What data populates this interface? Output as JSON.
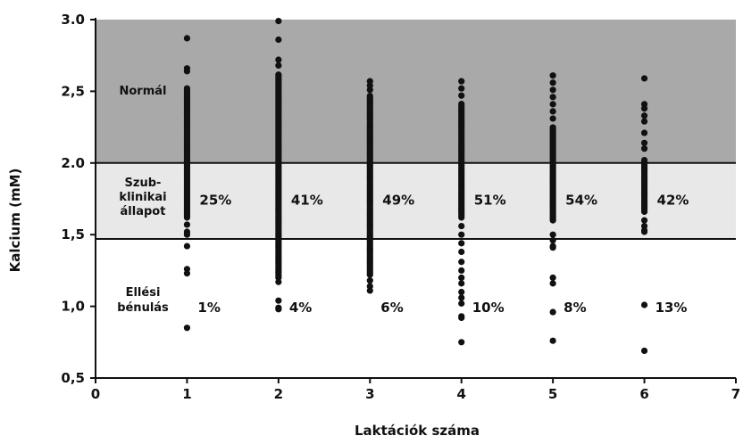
{
  "chart_data": {
    "type": "scatter",
    "xlabel": "Laktációk száma",
    "ylabel": "Kalcium (mM)",
    "xlim": [
      0,
      7
    ],
    "ylim": [
      0.5,
      3.0
    ],
    "x_ticks": [
      0,
      1,
      2,
      3,
      4,
      5,
      6,
      7
    ],
    "y_tick_labels": [
      "0,5",
      "1,0",
      "1,5",
      "2.0",
      "2,5",
      "3.0"
    ],
    "y_tick_values": [
      0.5,
      1.0,
      1.5,
      2.0,
      2.5,
      3.0
    ],
    "zones": [
      {
        "name": "normal",
        "from": 2.0,
        "to": 3.0,
        "color": "#a9a9a9"
      },
      {
        "name": "subclinical",
        "from": 1.47,
        "to": 2.0,
        "color": "#e8e8e8"
      },
      {
        "name": "paresis",
        "from": 0.5,
        "to": 1.47,
        "color": "#ffffff"
      }
    ],
    "zone_labels": {
      "normal": [
        "Normál"
      ],
      "subclinical": [
        "Szub-",
        "klinikai",
        "állapot"
      ],
      "paresis": [
        "Ellési",
        "bénulás"
      ]
    },
    "subclinical_percentages": [
      "25%",
      "41%",
      "49%",
      "51%",
      "54%",
      "42%"
    ],
    "paresis_percentages": [
      "1%",
      "4%",
      "6%",
      "10%",
      "8%",
      "13%"
    ],
    "point_color": "#111111",
    "series": [
      {
        "x": 1,
        "dense_range": [
          1.62,
          2.52
        ],
        "points": [
          2.87,
          2.66,
          2.64,
          1.57,
          1.52,
          1.5,
          1.42,
          1.26,
          1.23,
          0.85
        ]
      },
      {
        "x": 2,
        "dense_range": [
          1.2,
          2.62
        ],
        "points": [
          2.99,
          2.86,
          2.72,
          2.68,
          1.17,
          1.04,
          0.99,
          0.98
        ]
      },
      {
        "x": 3,
        "dense_range": [
          1.22,
          2.47
        ],
        "points": [
          2.57,
          2.54,
          2.51,
          1.18,
          1.14,
          1.11
        ]
      },
      {
        "x": 4,
        "dense_range": [
          1.62,
          2.42
        ],
        "points": [
          2.57,
          2.52,
          2.47,
          1.56,
          1.5,
          1.44,
          1.38,
          1.31,
          1.25,
          1.2,
          1.16,
          1.1,
          1.06,
          1.02,
          0.93,
          0.92,
          0.75
        ]
      },
      {
        "x": 5,
        "dense_range": [
          1.6,
          2.25
        ],
        "points": [
          2.61,
          2.56,
          2.51,
          2.46,
          2.41,
          2.36,
          2.31,
          1.5,
          1.46,
          1.42,
          1.41,
          1.2,
          1.16,
          0.96,
          0.76
        ]
      },
      {
        "x": 6,
        "dense_range": [
          1.66,
          2.03
        ],
        "points": [
          2.59,
          2.41,
          2.38,
          2.33,
          2.29,
          2.21,
          2.14,
          2.1,
          1.6,
          1.56,
          1.53,
          1.52,
          1.01,
          0.69
        ]
      }
    ]
  }
}
